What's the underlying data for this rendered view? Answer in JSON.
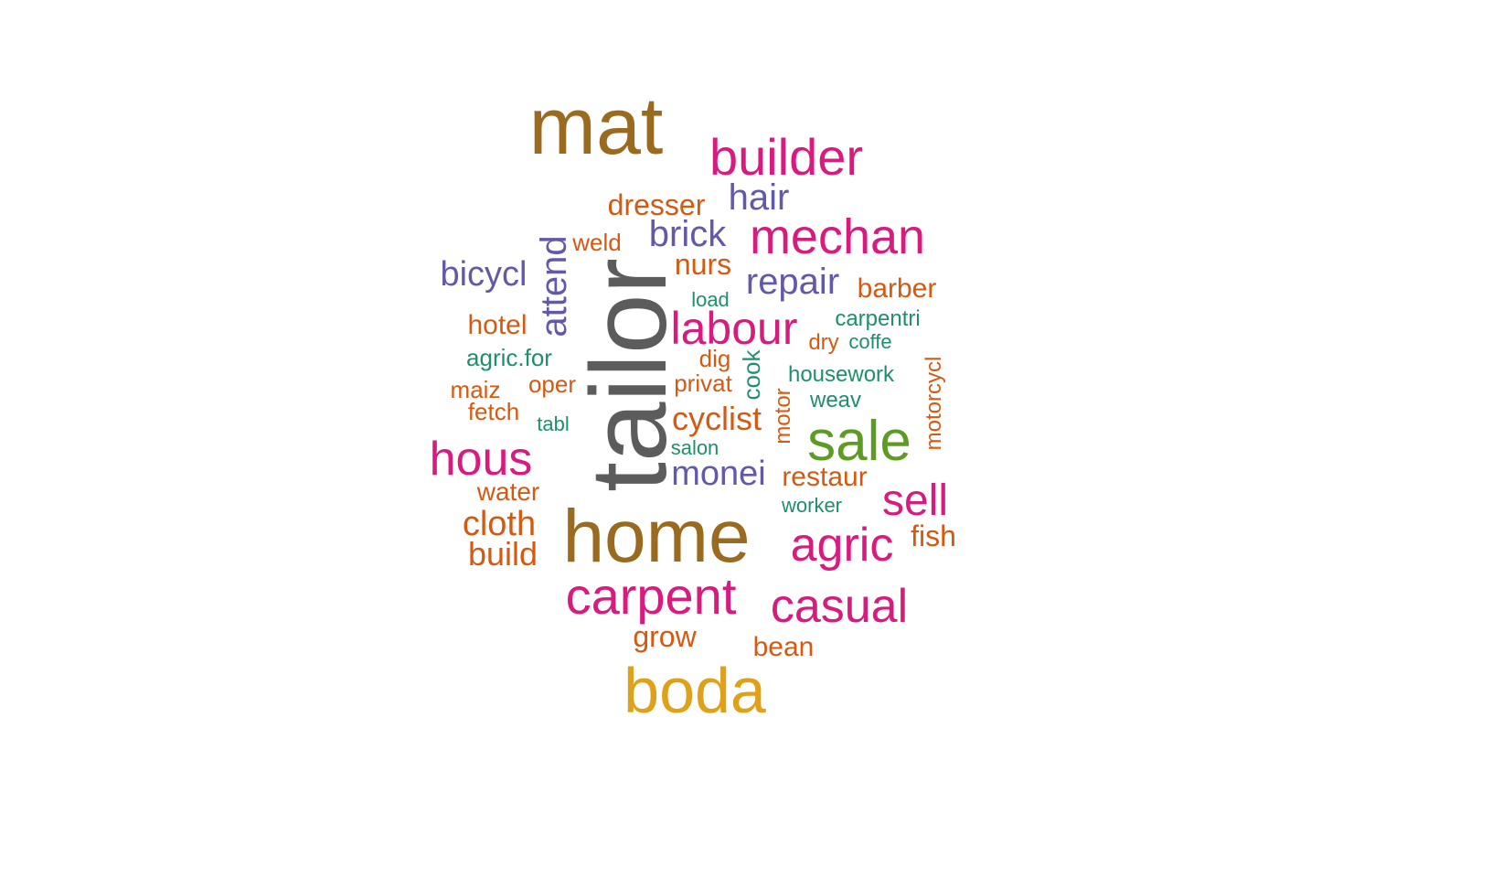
{
  "palette": {
    "brown": "#9A6B1E",
    "magenta": "#D81B7E",
    "purple": "#6259A8",
    "orange": "#D45A12",
    "teal": "#1E8F6A",
    "green": "#5E9B22",
    "gold": "#E0A11A",
    "gray": "#5C5C5C"
  },
  "words": [
    {
      "text": "mat",
      "color": "#9A6B1E",
      "vertical": false
    },
    {
      "text": "builder",
      "color": "#D81B7E",
      "vertical": false
    },
    {
      "text": "hair",
      "color": "#6259A8",
      "vertical": false
    },
    {
      "text": "dresser",
      "color": "#D45A12",
      "vertical": false
    },
    {
      "text": "brick",
      "color": "#6259A8",
      "vertical": false
    },
    {
      "text": "mechan",
      "color": "#D81B7E",
      "vertical": false
    },
    {
      "text": "weld",
      "color": "#D45A12",
      "vertical": false
    },
    {
      "text": "attend",
      "color": "#6259A8",
      "vertical": true
    },
    {
      "text": "bicycl",
      "color": "#6259A8",
      "vertical": false
    },
    {
      "text": "nurs",
      "color": "#D45A12",
      "vertical": false
    },
    {
      "text": "repair",
      "color": "#6259A8",
      "vertical": false
    },
    {
      "text": "barber",
      "color": "#D45A12",
      "vertical": false
    },
    {
      "text": "load",
      "color": "#1E8F6A",
      "vertical": false
    },
    {
      "text": "tailor",
      "color": "#5C5C5C",
      "vertical": true
    },
    {
      "text": "labour",
      "color": "#D81B7E",
      "vertical": false
    },
    {
      "text": "carpentri",
      "color": "#1E8F6A",
      "vertical": false
    },
    {
      "text": "hotel",
      "color": "#D45A12",
      "vertical": false
    },
    {
      "text": "dry",
      "color": "#D45A12",
      "vertical": false
    },
    {
      "text": "coffe",
      "color": "#1E8F6A",
      "vertical": false
    },
    {
      "text": "agric.for",
      "color": "#1E8F6A",
      "vertical": false
    },
    {
      "text": "dig",
      "color": "#D45A12",
      "vertical": false
    },
    {
      "text": "cook",
      "color": "#1E8F6A",
      "vertical": true
    },
    {
      "text": "motorcycl",
      "color": "#D45A12",
      "vertical": true
    },
    {
      "text": "housework",
      "color": "#1E8F6A",
      "vertical": false
    },
    {
      "text": "privat",
      "color": "#D45A12",
      "vertical": false
    },
    {
      "text": "oper",
      "color": "#D45A12",
      "vertical": false
    },
    {
      "text": "maiz",
      "color": "#D45A12",
      "vertical": false
    },
    {
      "text": "motor",
      "color": "#D45A12",
      "vertical": true
    },
    {
      "text": "weav",
      "color": "#1E8F6A",
      "vertical": false
    },
    {
      "text": "fetch",
      "color": "#D45A12",
      "vertical": false
    },
    {
      "text": "tabl",
      "color": "#1E8F6A",
      "vertical": false
    },
    {
      "text": "cyclist",
      "color": "#D45A12",
      "vertical": false
    },
    {
      "text": "sale",
      "color": "#5E9B22",
      "vertical": false
    },
    {
      "text": "salon",
      "color": "#1E8F6A",
      "vertical": false
    },
    {
      "text": "hous",
      "color": "#D81B7E",
      "vertical": false
    },
    {
      "text": "monei",
      "color": "#6259A8",
      "vertical": false
    },
    {
      "text": "restaur",
      "color": "#D45A12",
      "vertical": false
    },
    {
      "text": "water",
      "color": "#D45A12",
      "vertical": false
    },
    {
      "text": "sell",
      "color": "#D81B7E",
      "vertical": false
    },
    {
      "text": "worker",
      "color": "#1E8F6A",
      "vertical": false
    },
    {
      "text": "cloth",
      "color": "#D45A12",
      "vertical": false
    },
    {
      "text": "home",
      "color": "#9A6B1E",
      "vertical": false
    },
    {
      "text": "agric",
      "color": "#D81B7E",
      "vertical": false
    },
    {
      "text": "fish",
      "color": "#D45A12",
      "vertical": false
    },
    {
      "text": "build",
      "color": "#D45A12",
      "vertical": false
    },
    {
      "text": "carpent",
      "color": "#D81B7E",
      "vertical": false
    },
    {
      "text": "casual",
      "color": "#D81B7E",
      "vertical": false
    },
    {
      "text": "grow",
      "color": "#D45A12",
      "vertical": false
    },
    {
      "text": "bean",
      "color": "#D45A12",
      "vertical": false
    },
    {
      "text": "boda",
      "color": "#E0A11A",
      "vertical": false
    }
  ]
}
